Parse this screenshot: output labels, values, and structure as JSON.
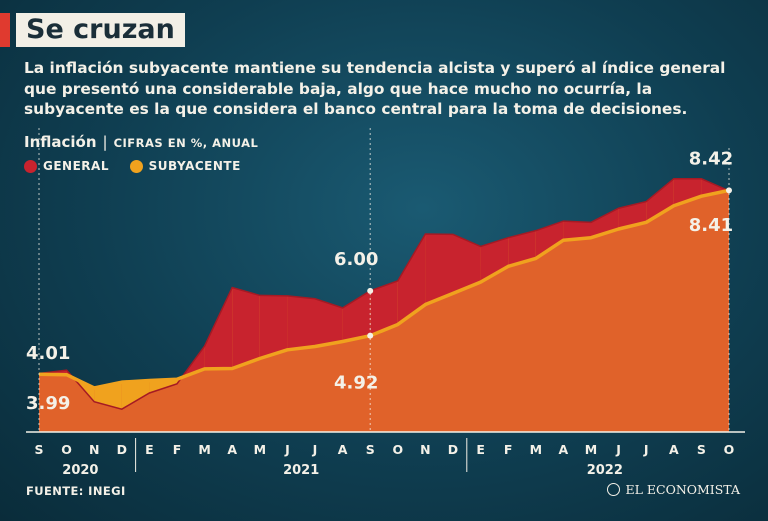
{
  "header": {
    "title": "Se cruzan",
    "subtitle": "La inflación subyacente mantiene su tendencia alcista y superó al índice general que presentó una considerable baja, algo que hace mucho no ocurría, la subyacente es la que considera el banco central para la toma de decisiones.",
    "chart_label": "Inflación",
    "chart_separator": "|",
    "chart_unit": "CIFRAS EN %, ANUAL"
  },
  "colors": {
    "general": "#c8232e",
    "subyacente": "#f0a21e",
    "area_orange": "#e0622a"
  },
  "legend": {
    "general": "GENERAL",
    "subyacente": "SUBYACENTE"
  },
  "chart_data": {
    "type": "area",
    "title": "Inflación",
    "ylabel": "CIFRAS EN %, ANUAL",
    "ylim": [
      2.6,
      9.2
    ],
    "x": [
      "S",
      "O",
      "N",
      "D",
      "E",
      "F",
      "M",
      "A",
      "M",
      "J",
      "J",
      "A",
      "S",
      "O",
      "N",
      "D",
      "E",
      "F",
      "M",
      "A",
      "M",
      "J",
      "J",
      "A",
      "S",
      "O"
    ],
    "year_labels": [
      {
        "label": "2020",
        "from": 0,
        "to": 3
      },
      {
        "label": "2021",
        "from": 4,
        "to": 15
      },
      {
        "label": "2022",
        "from": 16,
        "to": 25
      }
    ],
    "series": [
      {
        "name": "GENERAL",
        "values": [
          4.01,
          4.09,
          3.33,
          3.15,
          3.54,
          3.76,
          4.67,
          6.08,
          5.89,
          5.88,
          5.81,
          5.59,
          6.0,
          6.24,
          7.37,
          7.36,
          7.07,
          7.28,
          7.45,
          7.68,
          7.65,
          7.99,
          8.15,
          8.7,
          8.7,
          8.41
        ]
      },
      {
        "name": "SUBYACENTE",
        "values": [
          3.99,
          3.98,
          3.66,
          3.8,
          3.84,
          3.87,
          4.12,
          4.13,
          4.37,
          4.58,
          4.66,
          4.78,
          4.92,
          5.19,
          5.67,
          5.94,
          6.21,
          6.59,
          6.78,
          7.22,
          7.28,
          7.49,
          7.65,
          8.05,
          8.28,
          8.42
        ]
      }
    ],
    "annotations": [
      {
        "label": "4.01",
        "series": "GENERAL",
        "index": 0
      },
      {
        "label": "3.99",
        "series": "SUBYACENTE",
        "index": 0
      },
      {
        "label": "6.00",
        "series": "GENERAL",
        "index": 12
      },
      {
        "label": "4.92",
        "series": "SUBYACENTE",
        "index": 12
      },
      {
        "label": "8.42",
        "series": "SUBYACENTE",
        "index": 25
      },
      {
        "label": "8.41",
        "series": "GENERAL",
        "index": 25
      }
    ]
  },
  "footer": {
    "source": "FUENTE: INEGI",
    "brand": "EL ECONOMISTA"
  }
}
